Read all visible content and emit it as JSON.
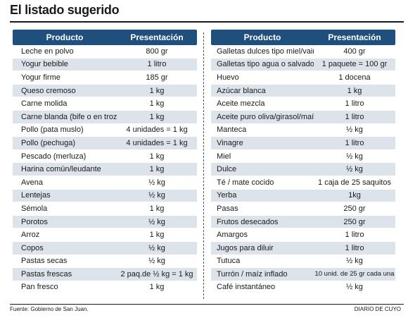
{
  "title": "El listado sugerido",
  "headers": {
    "product": "Producto",
    "presentation": "Presentación"
  },
  "left_rows": [
    {
      "product": "Leche en polvo",
      "presentation": "800 gr"
    },
    {
      "product": "Yogur bebible",
      "presentation": "1 litro"
    },
    {
      "product": "Yogur  firme",
      "presentation": "185 gr"
    },
    {
      "product": "Queso cremoso",
      "presentation": "1 kg"
    },
    {
      "product": "Carne molida",
      "presentation": "1 kg"
    },
    {
      "product": "Carne blanda (bife o en trozo)",
      "presentation": "1 kg"
    },
    {
      "product": "Pollo (pata muslo)",
      "presentation": "4 unidades = 1 kg"
    },
    {
      "product": "Pollo (pechuga)",
      "presentation": "4 unidades = 1 kg"
    },
    {
      "product": "Pescado (merluza)",
      "presentation": "1 kg"
    },
    {
      "product": "Harina común/leudante",
      "presentation": "1 kg"
    },
    {
      "product": "Avena",
      "presentation": "½  kg"
    },
    {
      "product": "Lentejas",
      "presentation": "½  kg"
    },
    {
      "product": "Sémola",
      "presentation": "1 kg"
    },
    {
      "product": "Porotos",
      "presentation": "½  kg"
    },
    {
      "product": "Arroz",
      "presentation": "1 kg"
    },
    {
      "product": "Copos",
      "presentation": "½ kg"
    },
    {
      "product": "Pastas secas",
      "presentation": "½ kg"
    },
    {
      "product": "Pastas frescas",
      "presentation": "2 paq.de ½ kg = 1 kg"
    },
    {
      "product": "Pan  fresco",
      "presentation": "1 kg"
    }
  ],
  "right_rows": [
    {
      "product": "Galletas dulces tipo miel/vainillas",
      "presentation": "400 gr"
    },
    {
      "product": "Galletas tipo agua o salvado",
      "presentation": "1 paquete = 100 gr"
    },
    {
      "product": "Huevo",
      "presentation": "1 docena"
    },
    {
      "product": "Azúcar blanca",
      "presentation": "1 kg"
    },
    {
      "product": "Aceite mezcla",
      "presentation": "1 litro"
    },
    {
      "product": "Aceite puro oliva/girasol/maíz",
      "presentation": "1 litro"
    },
    {
      "product": "Manteca",
      "presentation": "½ kg"
    },
    {
      "product": "Vinagre",
      "presentation": "1 litro"
    },
    {
      "product": "Miel",
      "presentation": "½ kg"
    },
    {
      "product": "Dulce",
      "presentation": "½ kg"
    },
    {
      "product": "Té / mate cocido",
      "presentation": "1 caja de 25 saquitos"
    },
    {
      "product": "Yerba",
      "presentation": "1kg"
    },
    {
      "product": "Pasas",
      "presentation": "250 gr"
    },
    {
      "product": "Frutos desecados",
      "presentation": "250 gr"
    },
    {
      "product": "Amargos",
      "presentation": "1 litro"
    },
    {
      "product": "Jugos para diluir",
      "presentation": "1 litro"
    },
    {
      "product": "Tutuca",
      "presentation": "½ kg"
    },
    {
      "product": "Turrón / maíz inflado",
      "presentation": "10 unid. de 25 gr cada una"
    },
    {
      "product": "Café instantáneo",
      "presentation": "½ kg"
    }
  ],
  "footer": {
    "source": "Fuente: Gobierno de San Juan.",
    "credit": "DIARIO DE CUYO"
  },
  "colors": {
    "header_bg": "#1f4f7d",
    "alt_row_bg": "#dde3ea"
  }
}
